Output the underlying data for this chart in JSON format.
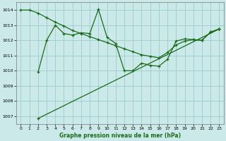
{
  "xlabel": "Graphe pression niveau de la mer (hPa)",
  "ylim": [
    1006.5,
    1014.5
  ],
  "xlim": [
    -0.5,
    23.5
  ],
  "yticks": [
    1007,
    1008,
    1009,
    1010,
    1011,
    1012,
    1013,
    1014
  ],
  "xticks": [
    0,
    1,
    2,
    3,
    4,
    5,
    6,
    7,
    8,
    9,
    10,
    11,
    12,
    13,
    14,
    15,
    16,
    17,
    18,
    19,
    20,
    21,
    22,
    23
  ],
  "bg_color": "#cce9e9",
  "line_color": "#1a6b1a",
  "grid_color": "#99cccc",
  "line1_x": [
    0,
    1,
    2,
    3,
    4,
    5,
    6,
    7,
    8,
    9,
    10,
    11,
    12,
    13,
    14,
    15,
    16,
    17,
    18,
    19,
    20,
    21,
    22,
    23
  ],
  "line1_y": [
    1014.0,
    1014.0,
    1013.8,
    1013.5,
    1013.2,
    1012.95,
    1012.65,
    1012.45,
    1012.25,
    1012.05,
    1011.85,
    1011.65,
    1011.45,
    1011.25,
    1011.05,
    1010.95,
    1010.85,
    1011.2,
    1011.7,
    1011.95,
    1012.05,
    1012.0,
    1012.55,
    1012.75
  ],
  "line2_x": [
    2,
    3,
    4,
    5,
    6,
    7,
    8,
    9,
    10,
    11,
    12,
    13,
    14,
    15,
    16,
    17,
    18,
    19,
    20,
    21,
    22,
    23
  ],
  "line2_y": [
    1009.9,
    1012.0,
    1013.0,
    1012.45,
    1012.35,
    1012.5,
    1012.45,
    1014.05,
    1012.2,
    1011.8,
    1010.0,
    1010.0,
    1010.5,
    1010.35,
    1010.3,
    1010.75,
    1011.95,
    1012.1,
    1012.05,
    1012.0,
    1012.55,
    1012.75
  ],
  "line3_x": [
    2,
    23
  ],
  "line3_y": [
    1006.85,
    1012.75
  ]
}
